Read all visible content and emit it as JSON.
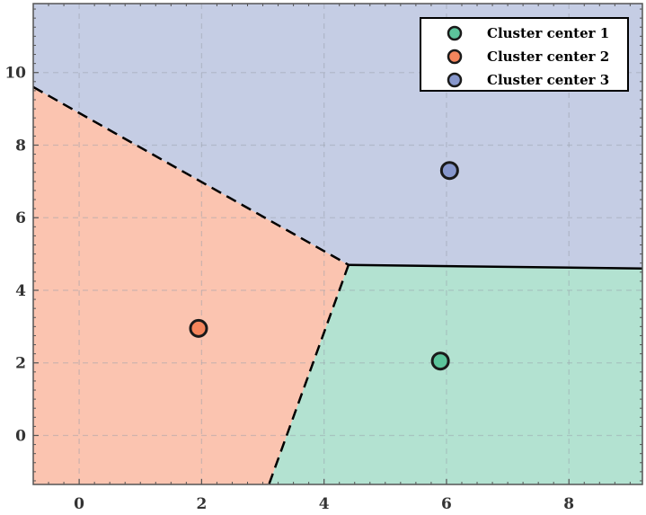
{
  "chart_data": {
    "type": "scatter",
    "title": "",
    "xlabel": "",
    "ylabel": "",
    "xlim": [
      -0.75,
      9.2
    ],
    "ylim": [
      -1.35,
      11.9
    ],
    "xticks": [
      0,
      2,
      4,
      6,
      8
    ],
    "yticks": [
      0,
      2,
      4,
      6,
      8,
      10
    ],
    "grid": true,
    "legend_position": "top-right",
    "series": [
      {
        "name": "Cluster center 1",
        "x": [
          5.9
        ],
        "y": [
          2.05
        ],
        "color": "#5cc49b",
        "region_color": "#b3e2d1"
      },
      {
        "name": "Cluster center 2",
        "x": [
          1.95
        ],
        "y": [
          2.95
        ],
        "color": "#f4855c",
        "region_color": "#fbc4b0"
      },
      {
        "name": "Cluster center 3",
        "x": [
          6.05
        ],
        "y": [
          7.3
        ],
        "color": "#8797cc",
        "region_color": "#c5cde4"
      }
    ],
    "boundaries": [
      {
        "style": "dashed",
        "points": [
          [
            -0.75,
            9.6
          ],
          [
            4.4,
            4.7
          ]
        ]
      },
      {
        "style": "dashed",
        "points": [
          [
            4.4,
            4.7
          ],
          [
            3.1,
            -1.35
          ]
        ]
      },
      {
        "style": "solid",
        "points": [
          [
            4.4,
            4.7
          ],
          [
            9.2,
            4.6
          ]
        ]
      }
    ]
  }
}
